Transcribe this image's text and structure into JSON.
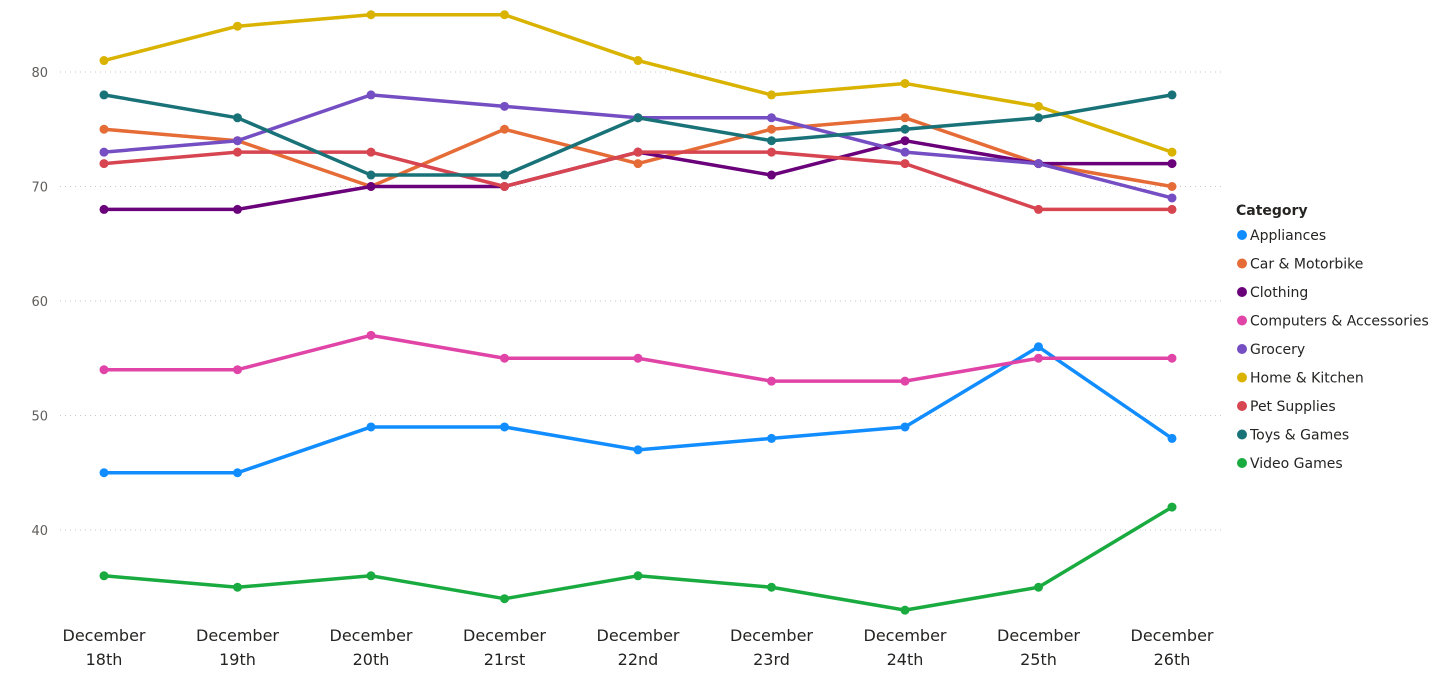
{
  "chart_data": {
    "type": "line",
    "title": "",
    "xlabel": "",
    "ylabel": "",
    "ylim": [
      31,
      86
    ],
    "yticks": [
      40,
      50,
      60,
      70,
      80
    ],
    "grid": true,
    "legend": {
      "title": "Category",
      "position": "right"
    },
    "categories": [
      [
        "December",
        "18th"
      ],
      [
        "December",
        "19th"
      ],
      [
        "December",
        "20th"
      ],
      [
        "December",
        "21rst"
      ],
      [
        "December",
        "22nd"
      ],
      [
        "December",
        "23rd"
      ],
      [
        "December",
        "24th"
      ],
      [
        "December",
        "25th"
      ],
      [
        "December",
        "26th"
      ]
    ],
    "series": [
      {
        "name": "Appliances",
        "color": "#118dff",
        "values": [
          45,
          45,
          49,
          49,
          47,
          48,
          49,
          56,
          48
        ]
      },
      {
        "name": "Car & Motorbike",
        "color": "#e66c37",
        "values": [
          75,
          74,
          70,
          75,
          72,
          75,
          76,
          72,
          70
        ]
      },
      {
        "name": "Clothing",
        "color": "#6b007b",
        "values": [
          68,
          68,
          70,
          70,
          73,
          71,
          74,
          72,
          72
        ]
      },
      {
        "name": "Computers & Accessories",
        "color": "#e044a7",
        "values": [
          54,
          54,
          57,
          55,
          55,
          53,
          53,
          55,
          55
        ]
      },
      {
        "name": "Grocery",
        "color": "#744ec2",
        "values": [
          73,
          74,
          78,
          77,
          76,
          76,
          73,
          72,
          69
        ]
      },
      {
        "name": "Home & Kitchen",
        "color": "#d9b300",
        "values": [
          81,
          84,
          85,
          85,
          81,
          78,
          79,
          77,
          73
        ]
      },
      {
        "name": "Pet Supplies",
        "color": "#d64550",
        "values": [
          72,
          73,
          73,
          70,
          73,
          73,
          72,
          68,
          68
        ]
      },
      {
        "name": "Toys & Games",
        "color": "#197278",
        "values": [
          78,
          76,
          71,
          71,
          76,
          74,
          75,
          76,
          78
        ]
      },
      {
        "name": "Video Games",
        "color": "#1aab40",
        "values": [
          36,
          35,
          36,
          34,
          36,
          35,
          33,
          35,
          42
        ]
      }
    ]
  }
}
